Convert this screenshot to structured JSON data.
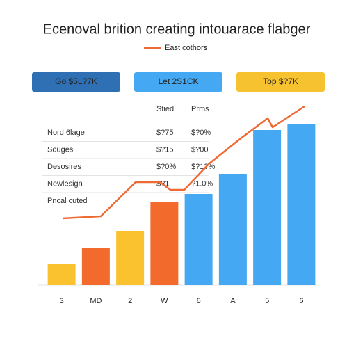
{
  "chart_data": {
    "type": "bar",
    "title": "Ecenoval brition creating intouarace flabger",
    "categories": [
      "3",
      "MD",
      "2",
      "W",
      "6",
      "A",
      "5",
      "6"
    ],
    "values": [
      30,
      53,
      78,
      119,
      131,
      160,
      223,
      232
    ],
    "colors": [
      "#f9c22e",
      "#f26b2d",
      "#f9c22e",
      "#f26b2d",
      "#45a8f2",
      "#45a8f2",
      "#45a8f2",
      "#45a8f2"
    ],
    "ylim": [
      0,
      260
    ],
    "line": {
      "name": "East cothors",
      "color": "#ee6a35",
      "x": [
        22,
        77,
        127,
        162,
        177,
        197,
        232,
        277,
        317,
        324,
        370
      ],
      "values": [
        96,
        99,
        148,
        148,
        137,
        137,
        174,
        210,
        240,
        227,
        257
      ],
      "xlim": [
        0,
        384
      ]
    }
  },
  "buttons": [
    {
      "label": "Go $5L?7K",
      "color": "#2f6fb3"
    },
    {
      "label": "Let 2S1CK",
      "color": "#45a8f2"
    },
    {
      "label": "Top $?7K",
      "color": "#f7c230"
    }
  ],
  "table": {
    "header": [
      "Stied",
      "Prms"
    ],
    "rows": [
      [
        "Nord 6lage",
        "$?75",
        "$?0%"
      ],
      [
        "Souges",
        "$?15",
        "$?00"
      ],
      [
        "Desosires",
        "$?0%",
        "$?1?%"
      ],
      [
        "Newlesign",
        "$?1",
        "?1.0%"
      ],
      [
        "Pncal cuted"
      ]
    ]
  }
}
